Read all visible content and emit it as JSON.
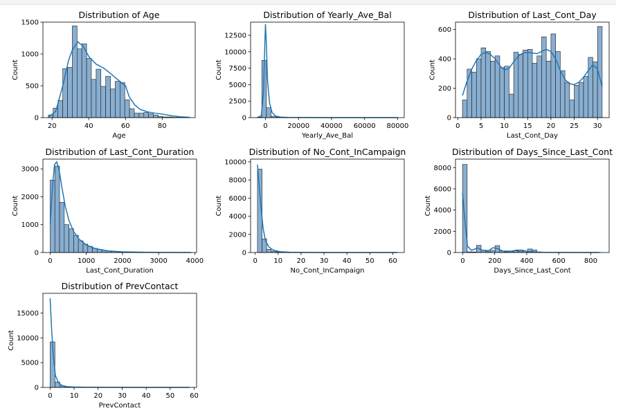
{
  "colors": {
    "bar_fill": "#88aed1",
    "bar_edge": "#1a1a1a",
    "kde_line": "#1f77b4"
  },
  "chart_data": [
    {
      "type": "bar",
      "title": "Distribution of Age",
      "xlabel": "Age",
      "ylabel": "Count",
      "xlim": [
        15,
        98
      ],
      "ylim": [
        0,
        1500
      ],
      "xticks": [
        20,
        40,
        60,
        80
      ],
      "yticks": [
        0,
        500,
        1000,
        1500
      ],
      "bins": {
        "start": 18,
        "width": 2.6,
        "counts": [
          40,
          150,
          270,
          770,
          790,
          1440,
          1080,
          1160,
          930,
          600,
          760,
          490,
          650,
          450,
          570,
          550,
          280,
          140,
          70,
          70,
          80,
          60,
          40,
          20,
          10,
          10,
          5,
          5,
          5
        ]
      },
      "kde": [
        [
          18,
          10
        ],
        [
          22,
          100
        ],
        [
          26,
          520
        ],
        [
          29,
          900
        ],
        [
          31,
          1060
        ],
        [
          34,
          1190
        ],
        [
          37,
          1120
        ],
        [
          40,
          960
        ],
        [
          44,
          840
        ],
        [
          48,
          780
        ],
        [
          52,
          690
        ],
        [
          56,
          590
        ],
        [
          60,
          500
        ],
        [
          62,
          330
        ],
        [
          65,
          200
        ],
        [
          68,
          130
        ],
        [
          72,
          90
        ],
        [
          76,
          70
        ],
        [
          80,
          55
        ],
        [
          85,
          30
        ],
        [
          90,
          12
        ],
        [
          95,
          5
        ]
      ]
    },
    {
      "type": "bar",
      "title": "Distribution of Yearly_Ave_Bal",
      "xlabel": "Yearly_Ave_Bal",
      "ylabel": "Count",
      "xlim": [
        -9000,
        84000
      ],
      "ylim": [
        0,
        14500
      ],
      "xticks": [
        0,
        20000,
        40000,
        60000,
        80000
      ],
      "yticks": [
        0,
        2500,
        5000,
        7500,
        10000,
        12500
      ],
      "bins": {
        "start": -5000,
        "width": 2800,
        "counts": [
          100,
          8700,
          1500,
          200,
          60,
          30,
          20,
          10,
          10,
          5,
          5,
          5,
          5,
          5,
          5,
          5,
          5,
          5,
          5,
          5,
          5,
          5,
          5,
          5,
          5,
          5,
          5,
          5,
          5,
          5
        ]
      },
      "kde": [
        [
          -5000,
          0
        ],
        [
          -2500,
          300
        ],
        [
          -1200,
          3800
        ],
        [
          -400,
          11000
        ],
        [
          0,
          14200
        ],
        [
          500,
          11500
        ],
        [
          1300,
          5500
        ],
        [
          2500,
          2200
        ],
        [
          4000,
          800
        ],
        [
          6000,
          250
        ],
        [
          9000,
          80
        ],
        [
          14000,
          30
        ],
        [
          25000,
          10
        ],
        [
          40000,
          5
        ],
        [
          80000,
          2
        ]
      ]
    },
    {
      "type": "bar",
      "title": "Distribution of Last_Cont_Day",
      "xlabel": "Last_Cont_Day",
      "ylabel": "Count",
      "xlim": [
        -0.5,
        32.5
      ],
      "ylim": [
        0,
        650
      ],
      "xticks": [
        0,
        5,
        10,
        15,
        20,
        25,
        30
      ],
      "yticks": [
        0,
        200,
        400,
        600
      ],
      "bins": {
        "start": 1,
        "width": 1,
        "counts": [
          120,
          330,
          310,
          400,
          475,
          450,
          385,
          420,
          340,
          350,
          160,
          445,
          430,
          460,
          465,
          370,
          420,
          550,
          385,
          570,
          450,
          320,
          240,
          120,
          220,
          240,
          280,
          410,
          380,
          620
        ]
      },
      "kde": [
        [
          1,
          150
        ],
        [
          2,
          250
        ],
        [
          3,
          330
        ],
        [
          4,
          390
        ],
        [
          5,
          430
        ],
        [
          6,
          445
        ],
        [
          7,
          430
        ],
        [
          8,
          400
        ],
        [
          9,
          355
        ],
        [
          10,
          325
        ],
        [
          11,
          335
        ],
        [
          12,
          380
        ],
        [
          13,
          420
        ],
        [
          14,
          440
        ],
        [
          15,
          445
        ],
        [
          16,
          440
        ],
        [
          17,
          435
        ],
        [
          18,
          450
        ],
        [
          19,
          465
        ],
        [
          20,
          450
        ],
        [
          21,
          400
        ],
        [
          22,
          320
        ],
        [
          23,
          260
        ],
        [
          24,
          230
        ],
        [
          25,
          225
        ],
        [
          26,
          240
        ],
        [
          27,
          275
        ],
        [
          28,
          320
        ],
        [
          29,
          360
        ],
        [
          30,
          330
        ],
        [
          31,
          210
        ]
      ]
    },
    {
      "type": "bar",
      "title": "Distribution of Last_Cont_Duration",
      "xlabel": "Last_Cont_Duration",
      "ylabel": "Count",
      "xlim": [
        -200,
        4050
      ],
      "ylim": [
        0,
        3350
      ],
      "xticks": [
        0,
        1000,
        2000,
        3000,
        4000
      ],
      "yticks": [
        0,
        1000,
        2000,
        3000
      ],
      "bins": {
        "start": 0,
        "width": 130,
        "counts": [
          2600,
          3100,
          1800,
          1000,
          850,
          620,
          420,
          300,
          220,
          150,
          110,
          80,
          60,
          40,
          30,
          20,
          15,
          10,
          8,
          6,
          5,
          5,
          4,
          3,
          3,
          2,
          2,
          2,
          2,
          2
        ]
      },
      "kde": [
        [
          0,
          1000
        ],
        [
          60,
          2300
        ],
        [
          120,
          3150
        ],
        [
          180,
          3250
        ],
        [
          250,
          2950
        ],
        [
          330,
          2300
        ],
        [
          420,
          1650
        ],
        [
          520,
          1150
        ],
        [
          650,
          750
        ],
        [
          800,
          480
        ],
        [
          1000,
          270
        ],
        [
          1250,
          140
        ],
        [
          1600,
          60
        ],
        [
          2000,
          25
        ],
        [
          2600,
          10
        ],
        [
          3200,
          4
        ],
        [
          3900,
          1
        ]
      ]
    },
    {
      "type": "bar",
      "title": "Distribution of No_Cont_InCampaign",
      "xlabel": "No_Cont_InCampaign",
      "ylabel": "Count",
      "xlim": [
        -2,
        65
      ],
      "ylim": [
        0,
        10300
      ],
      "xticks": [
        0,
        10,
        20,
        30,
        40,
        50,
        60
      ],
      "yticks": [
        0,
        2000,
        4000,
        6000,
        8000,
        10000
      ],
      "bins": {
        "start": 1,
        "width": 2,
        "counts": [
          9200,
          1500,
          350,
          150,
          80,
          40,
          20,
          10,
          8,
          6,
          5,
          4,
          3,
          3,
          2,
          2,
          2,
          2,
          2,
          2,
          2,
          2,
          2,
          2,
          2,
          2,
          2,
          2,
          2,
          2
        ]
      },
      "kde": [
        [
          1,
          9700
        ],
        [
          1.8,
          7200
        ],
        [
          2.6,
          4800
        ],
        [
          3.5,
          2600
        ],
        [
          4.5,
          1300
        ],
        [
          6,
          600
        ],
        [
          8,
          250
        ],
        [
          11,
          90
        ],
        [
          15,
          30
        ],
        [
          22,
          10
        ],
        [
          35,
          4
        ],
        [
          62,
          1
        ]
      ]
    },
    {
      "type": "bar",
      "title": "Distribution of Days_Since_Last_Cont",
      "xlabel": "Days_Since_Last_Cont",
      "ylabel": "Count",
      "xlim": [
        -45,
        915
      ],
      "ylim": [
        0,
        8800
      ],
      "xticks": [
        0,
        200,
        400,
        600,
        800
      ],
      "yticks": [
        0,
        2000,
        4000,
        6000,
        8000
      ],
      "bins": {
        "start": -1,
        "width": 29,
        "counts": [
          8300,
          60,
          50,
          680,
          230,
          120,
          200,
          650,
          140,
          70,
          100,
          150,
          130,
          140,
          330,
          240,
          60,
          20,
          10,
          5,
          5,
          5,
          5,
          5,
          5,
          5,
          5,
          5,
          5,
          5
        ]
      },
      "kde": [
        [
          -1,
          5600
        ],
        [
          12,
          3300
        ],
        [
          30,
          600
        ],
        [
          55,
          200
        ],
        [
          80,
          350
        ],
        [
          95,
          430
        ],
        [
          120,
          230
        ],
        [
          160,
          180
        ],
        [
          190,
          450
        ],
        [
          215,
          380
        ],
        [
          250,
          140
        ],
        [
          300,
          120
        ],
        [
          340,
          230
        ],
        [
          370,
          220
        ],
        [
          410,
          90
        ],
        [
          480,
          20
        ],
        [
          600,
          8
        ],
        [
          854,
          2
        ]
      ]
    },
    {
      "type": "bar",
      "title": "Distribution of PrevContact",
      "xlabel": "PrevContact",
      "ylabel": "Count",
      "xlim": [
        -3,
        61
      ],
      "ylim": [
        0,
        19000
      ],
      "xticks": [
        0,
        10,
        20,
        30,
        40,
        50,
        60
      ],
      "yticks": [
        0,
        5000,
        10000,
        15000
      ],
      "bins": {
        "start": 0,
        "width": 2,
        "counts": [
          9200,
          1100,
          300,
          150,
          80,
          40,
          20,
          15,
          10,
          8,
          6,
          5,
          4,
          3,
          3,
          2,
          2,
          2,
          2,
          2,
          2,
          2,
          2,
          2,
          2,
          2,
          2,
          2,
          2
        ]
      },
      "kde": [
        [
          0,
          18000
        ],
        [
          0.6,
          12000
        ],
        [
          1.3,
          6500
        ],
        [
          2.2,
          2400
        ],
        [
          3.5,
          900
        ],
        [
          5,
          380
        ],
        [
          7,
          160
        ],
        [
          10,
          70
        ],
        [
          15,
          30
        ],
        [
          25,
          12
        ],
        [
          40,
          5
        ],
        [
          58,
          2
        ]
      ]
    }
  ]
}
